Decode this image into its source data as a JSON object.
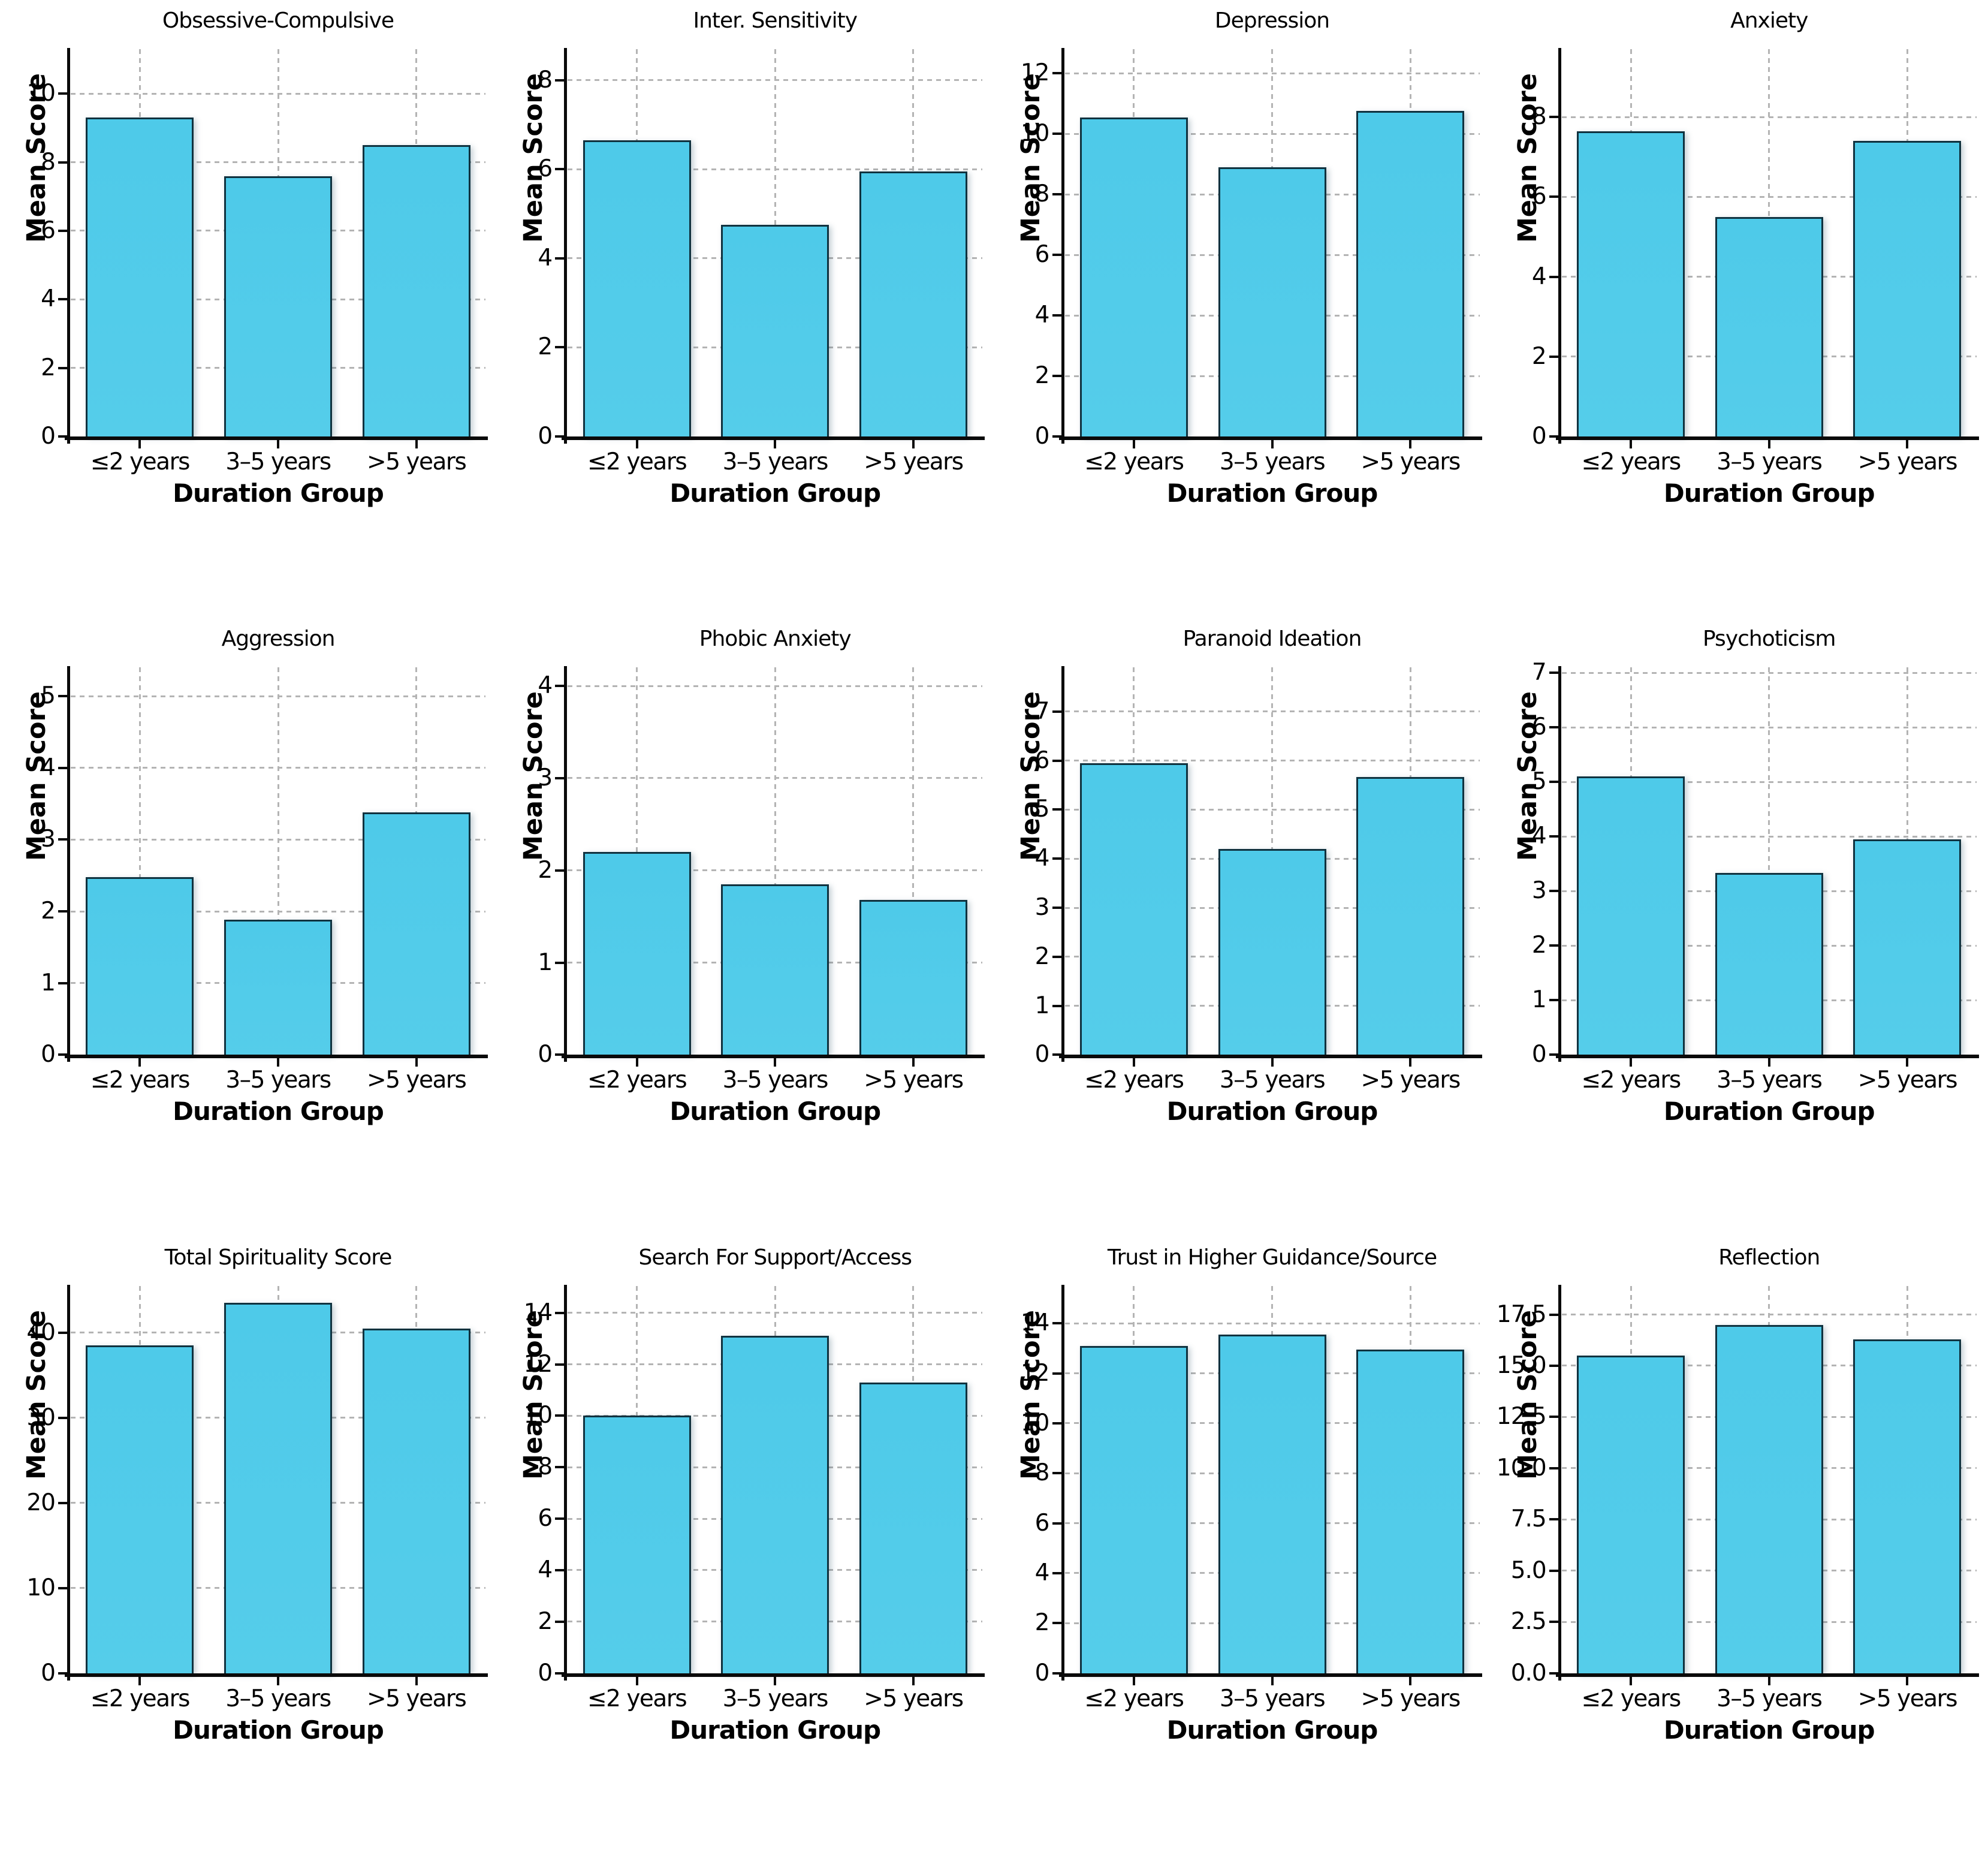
{
  "figure": {
    "ylabel": "Mean Score",
    "xlabel": "Duration Group",
    "categories": [
      "≤2 years",
      "3–5 years",
      ">5 years"
    ],
    "bar_color": "#4ecae9",
    "bar_edge_color": "#10323f",
    "grid_color": "#b4b4b4",
    "axis_color": "#0a0a0a",
    "grid": true,
    "legend": "none"
  },
  "chart_data": [
    {
      "type": "bar",
      "title": "Obsessive-Compulsive",
      "categories": [
        "≤2 years",
        "3–5 years",
        ">5 years"
      ],
      "values": [
        9.3,
        7.6,
        8.5
      ],
      "xlabel": "Duration Group",
      "ylabel": "Mean Score",
      "yticks": [
        0,
        2,
        4,
        6,
        8,
        10
      ],
      "ytick_labels": [
        "0",
        "2",
        "4",
        "6",
        "8",
        "10"
      ],
      "ylim": [
        0,
        11.3
      ]
    },
    {
      "type": "bar",
      "title": "Inter. Sensitivity",
      "categories": [
        "≤2 years",
        "3–5 years",
        ">5 years"
      ],
      "values": [
        6.65,
        4.75,
        5.95
      ],
      "xlabel": "Duration Group",
      "ylabel": "Mean Score",
      "yticks": [
        0,
        2,
        4,
        6,
        8
      ],
      "ytick_labels": [
        "0",
        "2",
        "4",
        "6",
        "8"
      ],
      "ylim": [
        0,
        8.7
      ]
    },
    {
      "type": "bar",
      "title": "Depression",
      "categories": [
        "≤2 years",
        "3–5 years",
        ">5 years"
      ],
      "values": [
        10.55,
        8.9,
        10.75
      ],
      "xlabel": "Duration Group",
      "ylabel": "Mean Score",
      "yticks": [
        0,
        2,
        4,
        6,
        8,
        10,
        12
      ],
      "ytick_labels": [
        "0",
        "2",
        "4",
        "6",
        "8",
        "10",
        "12"
      ],
      "ylim": [
        0,
        12.8
      ]
    },
    {
      "type": "bar",
      "title": "Anxiety",
      "categories": [
        "≤2 years",
        "3–5 years",
        ">5 years"
      ],
      "values": [
        7.65,
        5.5,
        7.4
      ],
      "xlabel": "Duration Group",
      "ylabel": "Mean Score",
      "yticks": [
        0,
        2,
        4,
        6,
        8
      ],
      "ytick_labels": [
        "0",
        "2",
        "4",
        "6",
        "8"
      ],
      "ylim": [
        0,
        9.7
      ]
    },
    {
      "type": "bar",
      "title": "Aggression",
      "categories": [
        "≤2 years",
        "3–5 years",
        ">5 years"
      ],
      "values": [
        2.48,
        1.88,
        3.38
      ],
      "xlabel": "Duration Group",
      "ylabel": "Mean Score",
      "yticks": [
        0,
        1,
        2,
        3,
        4,
        5
      ],
      "ytick_labels": [
        "0",
        "1",
        "2",
        "3",
        "4",
        "5"
      ],
      "ylim": [
        0,
        5.4
      ]
    },
    {
      "type": "bar",
      "title": "Phobic Anxiety",
      "categories": [
        "≤2 years",
        "3–5 years",
        ">5 years"
      ],
      "values": [
        2.2,
        1.85,
        1.68
      ],
      "xlabel": "Duration Group",
      "ylabel": "Mean Score",
      "yticks": [
        0,
        1,
        2,
        3,
        4
      ],
      "ytick_labels": [
        "0",
        "1",
        "2",
        "3",
        "4"
      ],
      "ylim": [
        0,
        4.2
      ]
    },
    {
      "type": "bar",
      "title": "Paranoid Ideation",
      "categories": [
        "≤2 years",
        "3–5 years",
        ">5 years"
      ],
      "values": [
        5.95,
        4.2,
        5.67
      ],
      "xlabel": "Duration Group",
      "ylabel": "Mean Score",
      "yticks": [
        0,
        1,
        2,
        3,
        4,
        5,
        6,
        7
      ],
      "ytick_labels": [
        "0",
        "1",
        "2",
        "3",
        "4",
        "5",
        "6",
        "7"
      ],
      "ylim": [
        0,
        7.9
      ]
    },
    {
      "type": "bar",
      "title": "Psychoticism",
      "categories": [
        "≤2 years",
        "3–5 years",
        ">5 years"
      ],
      "values": [
        5.1,
        3.33,
        3.95
      ],
      "xlabel": "Duration Group",
      "ylabel": "Mean Score",
      "yticks": [
        0,
        1,
        2,
        3,
        4,
        5,
        6,
        7
      ],
      "ytick_labels": [
        "0",
        "1",
        "2",
        "3",
        "4",
        "5",
        "6",
        "7"
      ],
      "ylim": [
        0,
        7.1
      ]
    },
    {
      "type": "bar",
      "title": "Total Spirituality Score",
      "categories": [
        "≤2 years",
        "3–5 years",
        ">5 years"
      ],
      "values": [
        38.5,
        43.5,
        40.5
      ],
      "xlabel": "Duration Group",
      "ylabel": "Mean Score",
      "yticks": [
        0,
        10,
        20,
        30,
        40
      ],
      "ytick_labels": [
        "0",
        "10",
        "20",
        "30",
        "40"
      ],
      "ylim": [
        0,
        45.5
      ]
    },
    {
      "type": "bar",
      "title": "Search For Support/Access",
      "categories": [
        "≤2 years",
        "3–5 years",
        ">5 years"
      ],
      "values": [
        10.0,
        13.1,
        11.3
      ],
      "xlabel": "Duration Group",
      "ylabel": "Mean Score",
      "yticks": [
        0,
        2,
        4,
        6,
        8,
        10,
        12,
        14
      ],
      "ytick_labels": [
        "0",
        "2",
        "4",
        "6",
        "8",
        "10",
        "12",
        "14"
      ],
      "ylim": [
        0,
        15.05
      ]
    },
    {
      "type": "bar",
      "title": "Trust in Higher Guidance/Source",
      "categories": [
        "≤2 years",
        "3–5 years",
        ">5 years"
      ],
      "values": [
        13.1,
        13.55,
        12.95
      ],
      "xlabel": "Duration Group",
      "ylabel": "Mean Score",
      "yticks": [
        0,
        2,
        4,
        6,
        8,
        10,
        12,
        14
      ],
      "ytick_labels": [
        "0",
        "2",
        "4",
        "6",
        "8",
        "10",
        "12",
        "14"
      ],
      "ylim": [
        0,
        15.5
      ]
    },
    {
      "type": "bar",
      "title": "Reflection",
      "categories": [
        "≤2 years",
        "3–5 years",
        ">5 years"
      ],
      "values": [
        15.5,
        17.0,
        16.3
      ],
      "xlabel": "Duration Group",
      "ylabel": "Mean Score",
      "yticks": [
        0,
        2.5,
        5,
        7.5,
        10,
        12.5,
        15,
        17.5
      ],
      "ytick_labels": [
        "0.0",
        "2.5",
        "5.0",
        "7.5",
        "10.0",
        "12.5",
        "15.0",
        "17.5"
      ],
      "ylim": [
        0,
        18.9
      ]
    }
  ]
}
